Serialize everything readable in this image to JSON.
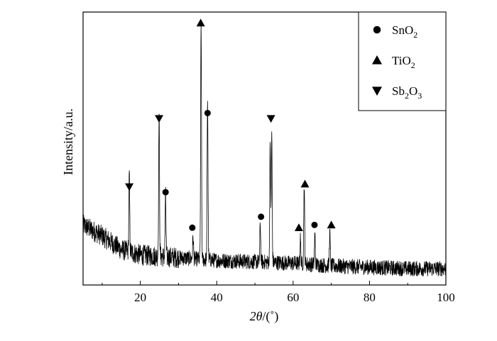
{
  "chart_data": {
    "type": "line",
    "title": "",
    "xlabel": "2θ/(˚)",
    "xlabel_parts": {
      "italic": "2θ",
      "rest": "/(˚)"
    },
    "ylabel": "Intensity/a.u.",
    "xlim": [
      5,
      100
    ],
    "ylim": [
      0,
      100
    ],
    "x_ticks": [
      20,
      40,
      60,
      80,
      100
    ],
    "x_minor_ticks": [
      10,
      30,
      50,
      70,
      90
    ],
    "grid": false,
    "legend_position": "top-right",
    "series": [
      {
        "style": "noisy-baseline-with-peaks",
        "baseline": [
          [
            5,
            22
          ],
          [
            10,
            18
          ],
          [
            15,
            13
          ],
          [
            20,
            11
          ],
          [
            30,
            10
          ],
          [
            40,
            9
          ],
          [
            50,
            8.5
          ],
          [
            60,
            8
          ],
          [
            70,
            7
          ],
          [
            80,
            6.5
          ],
          [
            90,
            6
          ],
          [
            100,
            6
          ]
        ],
        "peaks": [
          {
            "x": 17.1,
            "height": 28
          },
          {
            "x": 24.9,
            "height": 52
          },
          {
            "x": 26.6,
            "height": 22
          },
          {
            "x": 33.8,
            "height": 8
          },
          {
            "x": 35.9,
            "height": 87
          },
          {
            "x": 37.6,
            "height": 59
          },
          {
            "x": 51.4,
            "height": 14
          },
          {
            "x": 54.0,
            "height": 44
          },
          {
            "x": 54.4,
            "height": 47
          },
          {
            "x": 61.9,
            "height": 9
          },
          {
            "x": 62.9,
            "height": 29
          },
          {
            "x": 65.7,
            "height": 11
          },
          {
            "x": 69.6,
            "height": 12
          }
        ]
      }
    ],
    "markers": [
      {
        "phase": "Sb2O3",
        "x": 17.1,
        "y": 36
      },
      {
        "phase": "Sb2O3",
        "x": 24.9,
        "y": 61
      },
      {
        "phase": "SnO2",
        "x": 26.6,
        "y": 34
      },
      {
        "phase": "SnO2",
        "x": 33.6,
        "y": 21
      },
      {
        "phase": "TiO2",
        "x": 35.8,
        "y": 96
      },
      {
        "phase": "SnO2",
        "x": 37.6,
        "y": 63
      },
      {
        "phase": "SnO2",
        "x": 51.6,
        "y": 25
      },
      {
        "phase": "Sb2O3",
        "x": 54.2,
        "y": 61
      },
      {
        "phase": "TiO2",
        "x": 61.5,
        "y": 21
      },
      {
        "phase": "TiO2",
        "x": 63.1,
        "y": 37
      },
      {
        "phase": "SnO2",
        "x": 65.6,
        "y": 22
      },
      {
        "phase": "TiO2",
        "x": 70.0,
        "y": 22
      }
    ],
    "legend": [
      {
        "phase": "SnO2",
        "marker": "circle",
        "base": "SnO",
        "sub1": "2",
        "mid": "",
        "sub2": ""
      },
      {
        "phase": "TiO2",
        "marker": "triangle-up",
        "base": "TiO",
        "sub1": "2",
        "mid": "",
        "sub2": ""
      },
      {
        "phase": "Sb2O3",
        "marker": "triangle-down",
        "base": "Sb",
        "sub1": "2",
        "mid": "O",
        "sub2": "3"
      }
    ],
    "colors": {
      "line": "#000000",
      "axis": "#000000",
      "background": "#ffffff"
    }
  }
}
